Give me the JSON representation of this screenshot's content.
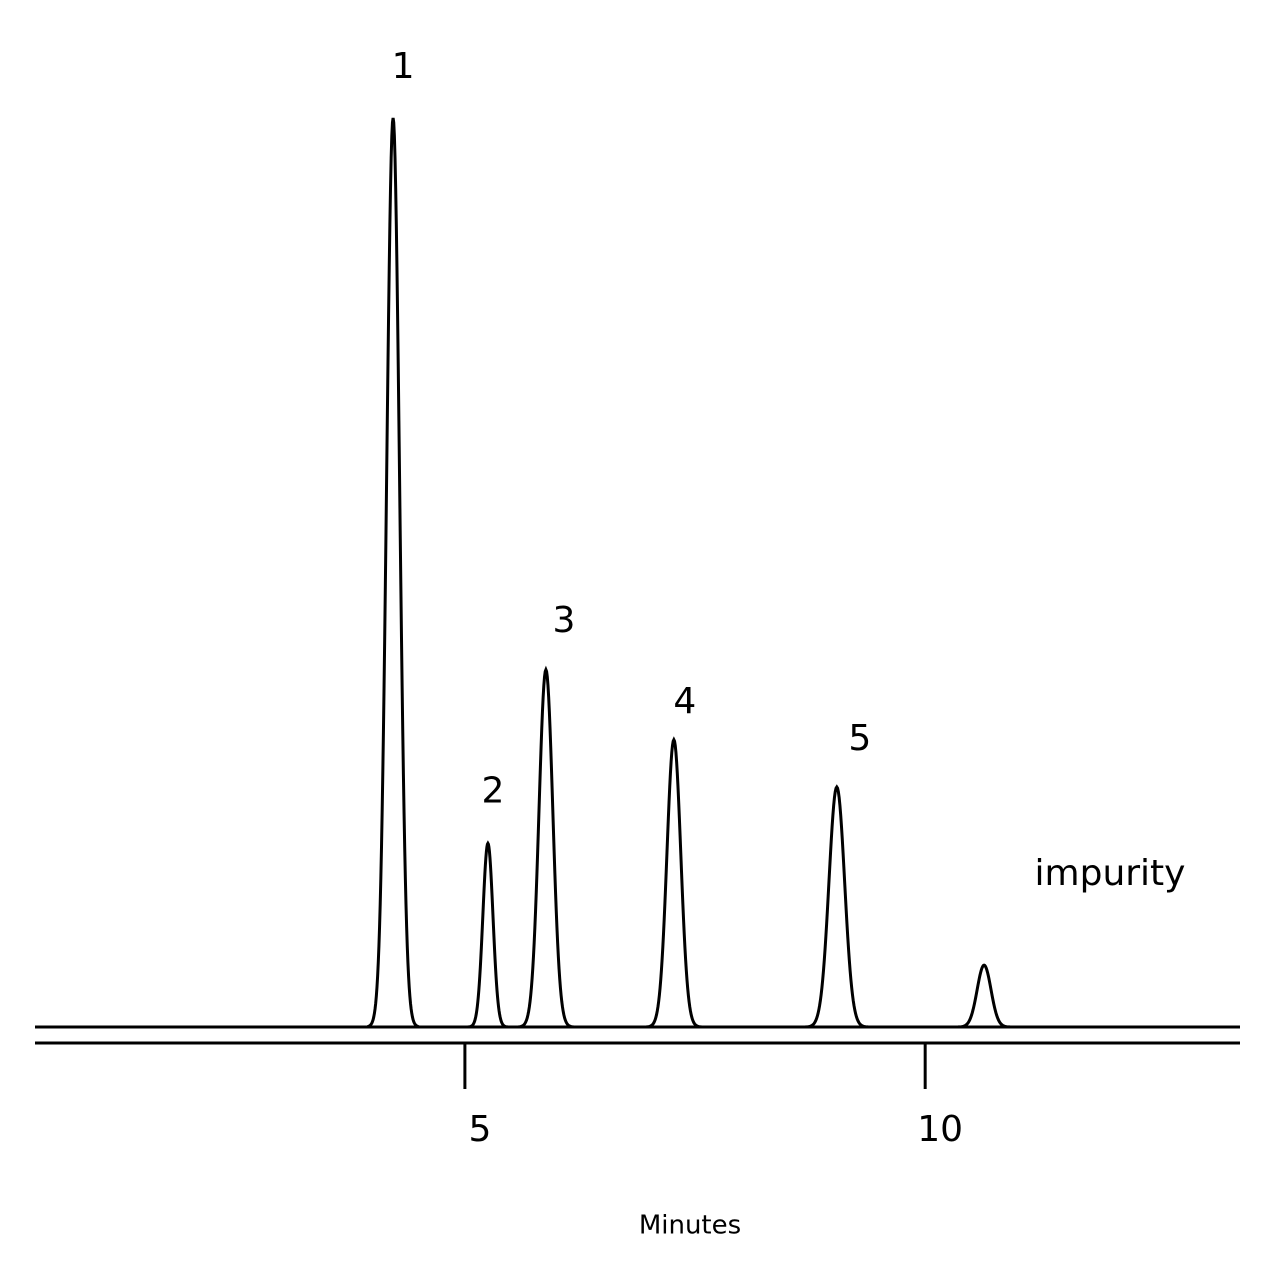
{
  "chart_data": {
    "type": "chromatogram",
    "x_label": "Minutes",
    "peaks": {
      "labels": [
        "1",
        "2",
        "3",
        "4",
        "5",
        "impurity"
      ],
      "times": [
        4.22,
        5.25,
        5.88,
        7.27,
        9.04,
        10.64
      ],
      "heights": [
        100,
        20.2,
        39.3,
        31.6,
        26.4,
        6.8
      ],
      "widths": [
        0.07,
        0.055,
        0.075,
        0.075,
        0.085,
        0.075
      ]
    },
    "xlim": [
      0.33,
      13.42
    ],
    "xticks": [
      5,
      10
    ],
    "ylim": [
      0,
      100
    ],
    "color": "#000000"
  }
}
